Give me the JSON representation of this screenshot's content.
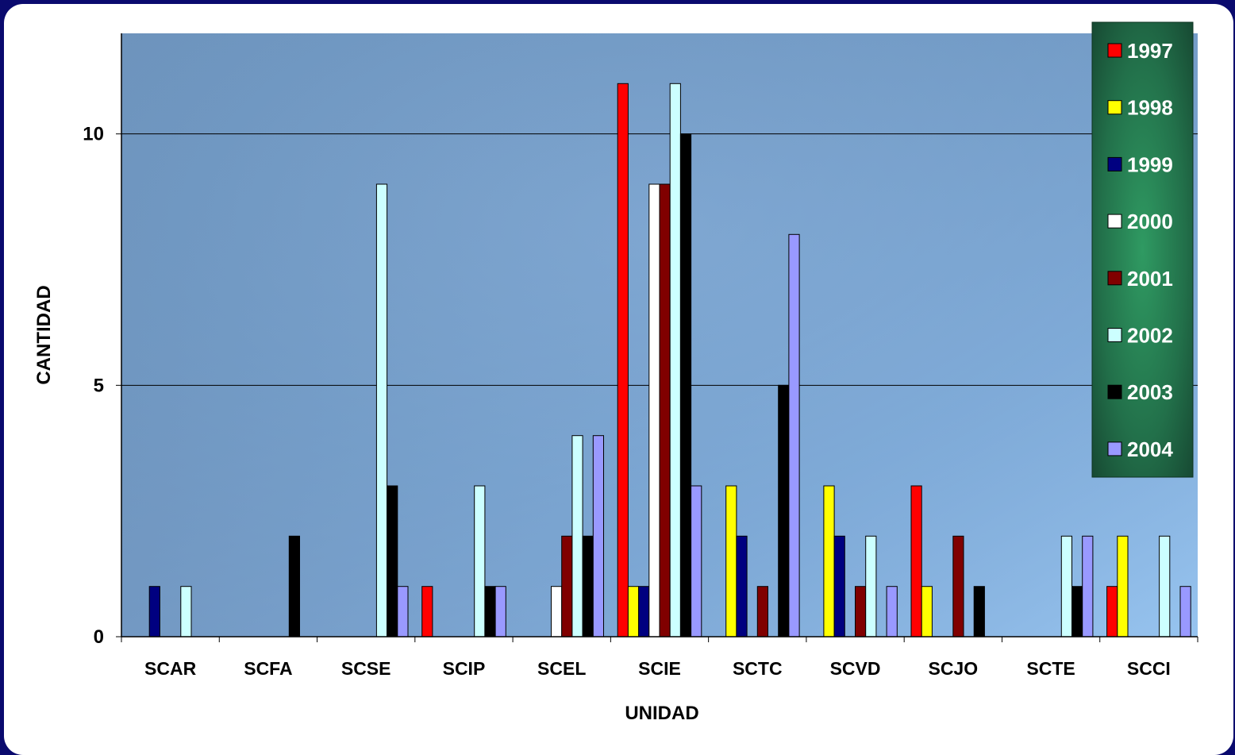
{
  "chart_data": {
    "type": "bar",
    "xlabel": "UNIDAD",
    "ylabel": "CANTIDAD",
    "ylim": [
      0,
      12
    ],
    "yticks": [
      "0",
      "5",
      "10"
    ],
    "grid": true,
    "legend_position": "right",
    "categories": [
      "SCAR",
      "SCFA",
      "SCSE",
      "SCIP",
      "SCEL",
      "SCIE",
      "SCTC",
      "SCVD",
      "SCJO",
      "SCTE",
      "SCCI"
    ],
    "series": [
      {
        "name": "1997",
        "color": "#ff0000",
        "values": [
          0,
          0,
          0,
          1,
          0,
          11,
          0,
          0,
          3,
          0,
          1
        ]
      },
      {
        "name": "1998",
        "color": "#ffff00",
        "values": [
          0,
          0,
          0,
          0,
          0,
          1,
          3,
          3,
          1,
          0,
          2
        ]
      },
      {
        "name": "1999",
        "color": "#000080",
        "values": [
          1,
          0,
          0,
          0,
          0,
          1,
          2,
          2,
          0,
          0,
          0
        ]
      },
      {
        "name": "2000",
        "color": "#ffffff",
        "values": [
          0,
          0,
          0,
          0,
          1,
          9,
          0,
          0,
          0,
          0,
          0
        ]
      },
      {
        "name": "2001",
        "color": "#800000",
        "values": [
          0,
          0,
          0,
          0,
          2,
          9,
          1,
          1,
          2,
          0,
          0
        ]
      },
      {
        "name": "2002",
        "color": "#ccffff",
        "values": [
          1,
          0,
          9,
          3,
          4,
          11,
          0,
          2,
          0,
          2,
          2
        ]
      },
      {
        "name": "2003",
        "color": "#000000",
        "values": [
          0,
          2,
          3,
          1,
          2,
          10,
          5,
          0,
          1,
          1,
          0
        ]
      },
      {
        "name": "2004",
        "color": "#9999ff",
        "values": [
          0,
          0,
          1,
          1,
          4,
          3,
          8,
          1,
          0,
          2,
          1
        ]
      }
    ]
  }
}
